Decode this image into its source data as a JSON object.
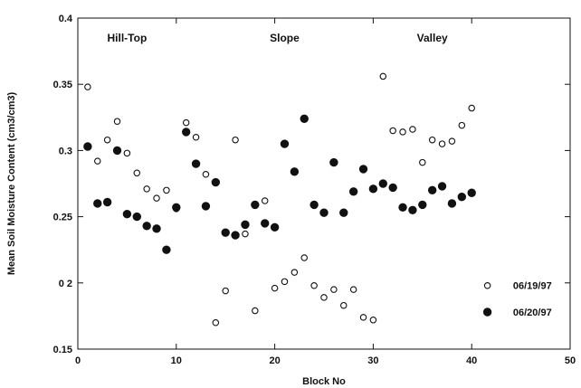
{
  "chart_data": {
    "type": "scatter",
    "xlabel": "Block No",
    "ylabel": "Mean Soil Moisture Content (cm3/cm3)",
    "xlim": [
      0,
      50
    ],
    "ylim": [
      0.15,
      0.4
    ],
    "x_ticks": [
      0,
      10,
      20,
      30,
      40,
      50
    ],
    "y_ticks": [
      0.15,
      0.2,
      0.25,
      0.3,
      0.35,
      0.4
    ],
    "x_tick_labels": [
      "0",
      "10",
      "20",
      "30",
      "40",
      "50"
    ],
    "y_tick_labels": [
      "0.15",
      "0 2",
      "0.25",
      "0.3",
      "0.35",
      "0.4"
    ],
    "grid": false,
    "legend_position": "bottom-right",
    "annotations": [
      {
        "text": "Hill-Top",
        "x": 5,
        "y": 0.385
      },
      {
        "text": "Slope",
        "x": 21,
        "y": 0.385
      },
      {
        "text": "Valley",
        "x": 36,
        "y": 0.385
      }
    ],
    "series": [
      {
        "name": "06/19/97",
        "marker": "open-circle",
        "color": "#111111",
        "x": [
          1,
          2,
          3,
          4,
          5,
          6,
          7,
          8,
          9,
          10,
          11,
          12,
          13,
          14,
          15,
          16,
          17,
          18,
          19,
          20,
          21,
          22,
          23,
          24,
          25,
          26,
          27,
          28,
          29,
          30,
          31,
          32,
          33,
          34,
          35,
          36,
          37,
          38,
          39,
          40
        ],
        "y": [
          0.348,
          0.292,
          0.308,
          0.322,
          0.298,
          0.283,
          0.271,
          0.264,
          0.27,
          0.256,
          0.321,
          0.31,
          0.282,
          0.17,
          0.194,
          0.308,
          0.237,
          0.179,
          0.262,
          0.196,
          0.201,
          0.208,
          0.219,
          0.198,
          0.189,
          0.195,
          0.183,
          0.195,
          0.174,
          0.172,
          0.356,
          0.315,
          0.314,
          0.316,
          0.291,
          0.308,
          0.305,
          0.307,
          0.319,
          0.332
        ]
      },
      {
        "name": "06/20/97",
        "marker": "filled-circle",
        "color": "#111111",
        "x": [
          1,
          2,
          3,
          4,
          5,
          6,
          7,
          8,
          9,
          10,
          11,
          12,
          13,
          14,
          15,
          16,
          17,
          18,
          19,
          20,
          21,
          22,
          23,
          24,
          25,
          26,
          27,
          28,
          29,
          30,
          31,
          32,
          33,
          34,
          35,
          36,
          37,
          38,
          39,
          40
        ],
        "y": [
          0.303,
          0.26,
          0.261,
          0.3,
          0.252,
          0.25,
          0.243,
          0.241,
          0.225,
          0.257,
          0.314,
          0.29,
          0.258,
          0.276,
          0.238,
          0.236,
          0.244,
          0.259,
          0.245,
          0.242,
          0.305,
          0.284,
          0.324,
          0.259,
          0.253,
          0.291,
          0.253,
          0.269,
          0.286,
          0.271,
          0.275,
          0.272,
          0.257,
          0.255,
          0.259,
          0.27,
          0.273,
          0.26,
          0.265,
          0.268
        ]
      }
    ]
  }
}
